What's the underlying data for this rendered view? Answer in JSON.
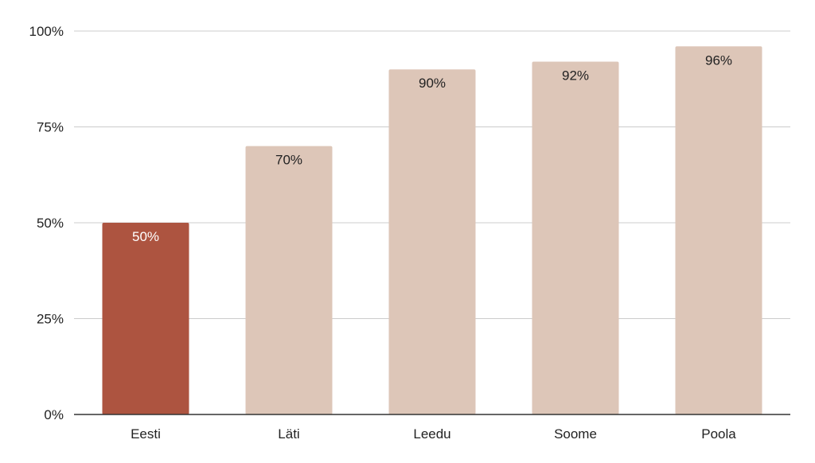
{
  "chart_data": {
    "type": "bar",
    "title": "",
    "xlabel": "",
    "ylabel": "",
    "categories": [
      "Eesti",
      "Läti",
      "Leedu",
      "Soome",
      "Poola"
    ],
    "values": [
      50,
      70,
      90,
      92,
      96
    ],
    "value_labels": [
      "50%",
      "70%",
      "90%",
      "92%",
      "96%"
    ],
    "ylim": [
      0,
      100
    ],
    "yticks": [
      0,
      25,
      50,
      75,
      100
    ],
    "ytick_labels": [
      "0%",
      "25%",
      "50%",
      "75%",
      "100%"
    ],
    "grid": true,
    "legend": "none",
    "colors": {
      "highlight": "#ad5440",
      "default": "#ddc6b8",
      "highlight_label": "#ffffff",
      "default_label": "#222222"
    },
    "highlight_index": 0
  }
}
